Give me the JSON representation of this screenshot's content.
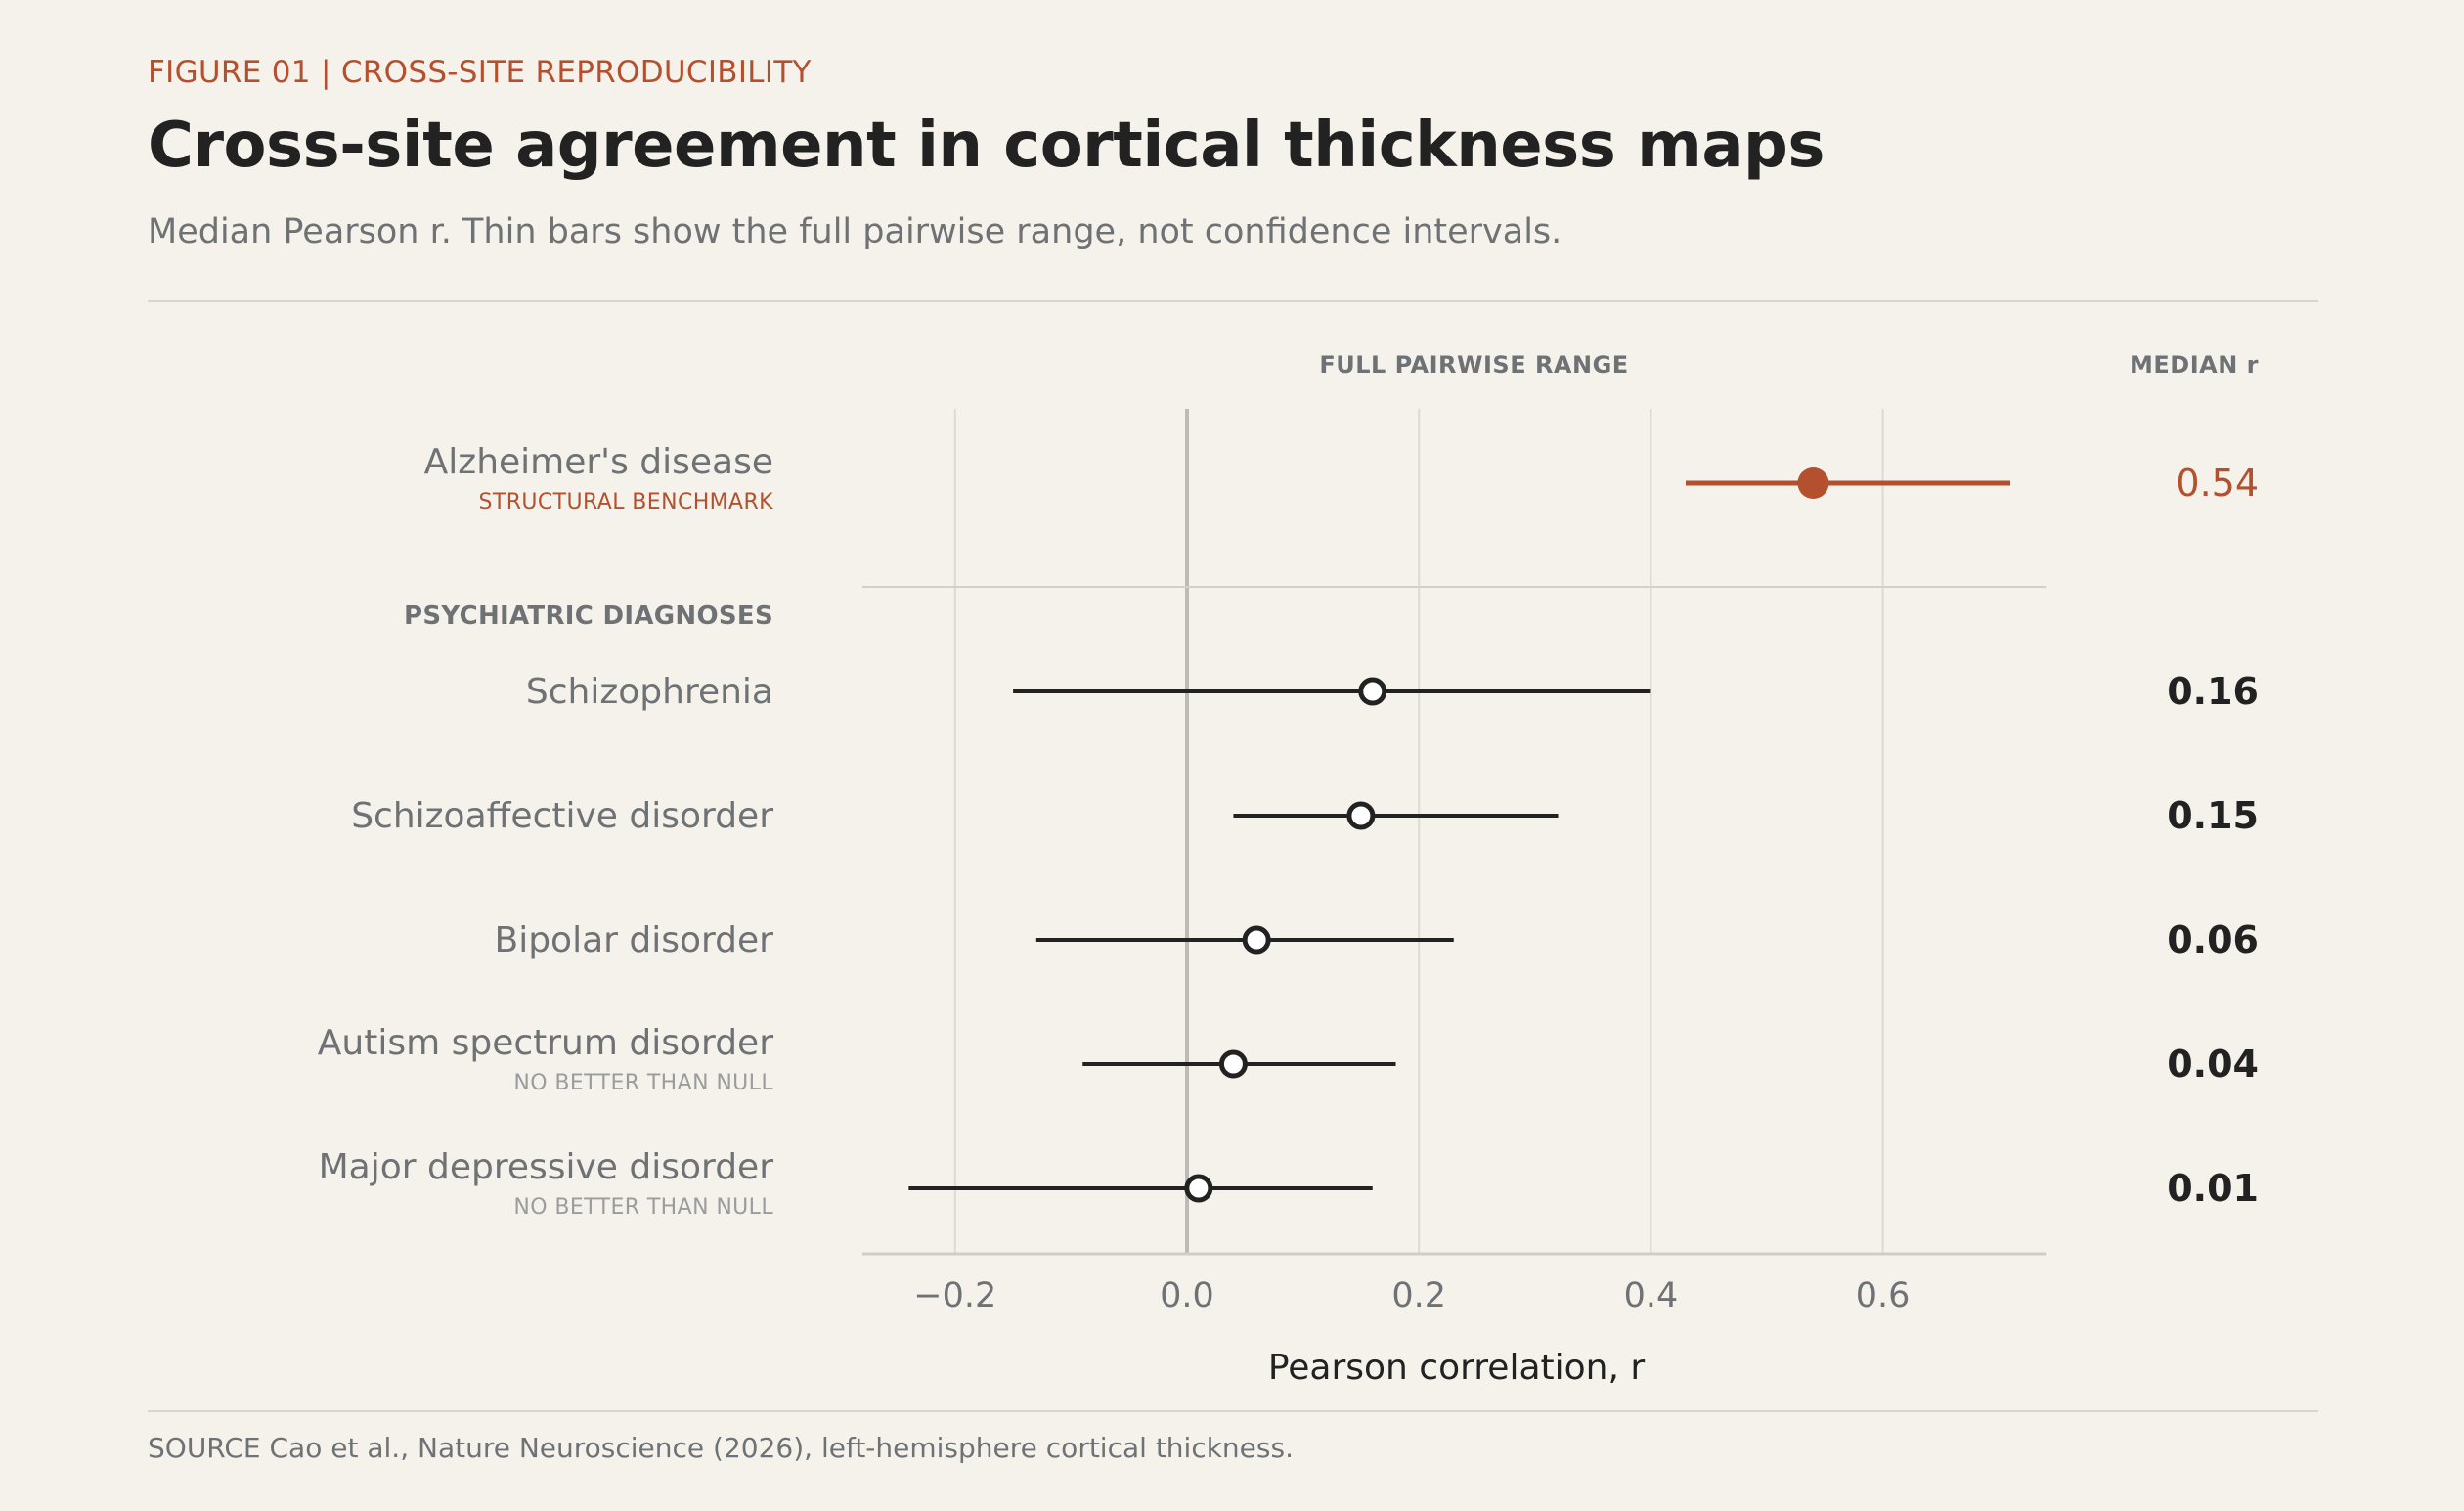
{
  "header": {
    "eyebrow": "FIGURE 01  |  CROSS-SITE REPRODUCIBILITY",
    "title": "Cross-site agreement in cortical thickness maps",
    "subtitle": "Median Pearson r. Thin bars show the full pairwise range, not confidence intervals."
  },
  "footer": {
    "source": "SOURCE  Cao et al., Nature Neuroscience (2026), left-hemisphere cortical thickness."
  },
  "colors": {
    "accent": "#b5502f",
    "ink": "#222222",
    "muted": "#6f7275",
    "grid": "#dcdad4",
    "background": "#f5f2eb"
  },
  "chart_data": {
    "type": "dot-range",
    "column_headers": {
      "range": "FULL PAIRWISE RANGE",
      "median": "MEDIAN r"
    },
    "group_label": "PSYCHIATRIC DIAGNOSES",
    "xlabel": "Pearson correlation, r",
    "xlim": [
      -0.28,
      0.74
    ],
    "ticks": [
      -0.2,
      0.0,
      0.2,
      0.4,
      0.6
    ],
    "tick_labels": [
      "−0.2",
      "0.0",
      "0.2",
      "0.4",
      "0.6"
    ],
    "grid": true,
    "rows": [
      {
        "label": "Alzheimer's disease",
        "sublabel": "STRUCTURAL BENCHMARK",
        "median": 0.54,
        "min": 0.43,
        "max": 0.71,
        "value_label": "0.54",
        "highlight": true
      },
      {
        "label": "Schizophrenia",
        "sublabel": "",
        "median": 0.16,
        "min": -0.15,
        "max": 0.4,
        "value_label": "0.16",
        "highlight": false
      },
      {
        "label": "Schizoaffective disorder",
        "sublabel": "",
        "median": 0.15,
        "min": 0.04,
        "max": 0.32,
        "value_label": "0.15",
        "highlight": false
      },
      {
        "label": "Bipolar disorder",
        "sublabel": "",
        "median": 0.06,
        "min": -0.13,
        "max": 0.23,
        "value_label": "0.06",
        "highlight": false
      },
      {
        "label": "Autism spectrum disorder",
        "sublabel": "NO BETTER THAN NULL",
        "median": 0.04,
        "min": -0.09,
        "max": 0.18,
        "value_label": "0.04",
        "highlight": false
      },
      {
        "label": "Major depressive disorder",
        "sublabel": "NO BETTER THAN NULL",
        "median": 0.01,
        "min": -0.24,
        "max": 0.16,
        "value_label": "0.01",
        "highlight": false
      }
    ]
  }
}
